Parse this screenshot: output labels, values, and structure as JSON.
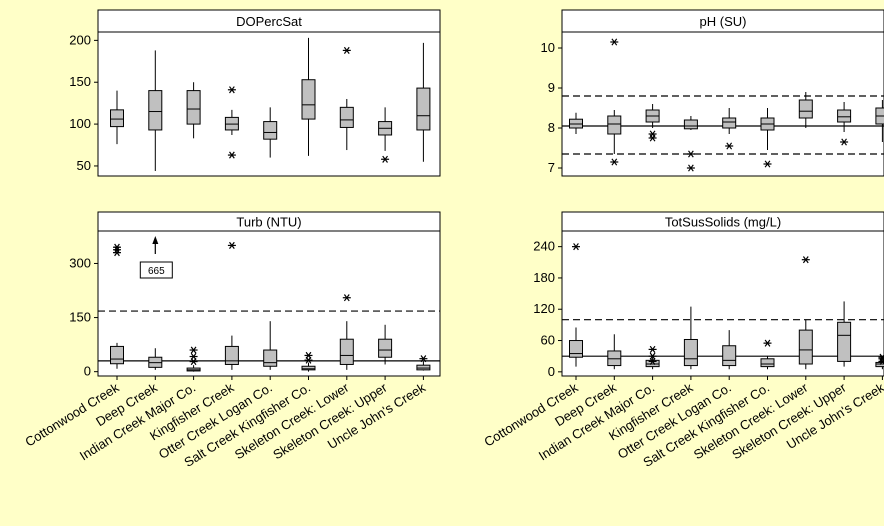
{
  "figure": {
    "background": "#FFFFC8",
    "box_fill": "#C0C0C0",
    "panel_fill": "#FFFFFF"
  },
  "chart_data": [
    {
      "type": "box",
      "title": "DOPercSat",
      "ylim": [
        38,
        210
      ],
      "yticks": [
        50,
        100,
        150,
        200
      ],
      "categories": [
        "Cottonwood Creek",
        "Deep Creek",
        "Indian Creek Major Co.",
        "Kingfisher Creek",
        "Otter Creek Logan Co.",
        "Salt Creek Kingfisher Co.",
        "Skeleton Creek: Lower",
        "Skeleton Creek: Upper",
        "Uncle John's Creek"
      ],
      "boxes": [
        {
          "low": 76,
          "q1": 97,
          "median": 106,
          "q3": 117,
          "high": 140,
          "outliers": []
        },
        {
          "low": 44,
          "q1": 93,
          "median": 115,
          "q3": 140,
          "high": 188,
          "outliers": []
        },
        {
          "low": 83,
          "q1": 100,
          "median": 118,
          "q3": 140,
          "high": 150,
          "outliers": []
        },
        {
          "low": 87,
          "q1": 93,
          "median": 100,
          "q3": 108,
          "high": 117,
          "outliers": [
            141,
            63
          ]
        },
        {
          "low": 60,
          "q1": 82,
          "median": 90,
          "q3": 103,
          "high": 120,
          "outliers": []
        },
        {
          "low": 62,
          "q1": 106,
          "median": 123,
          "q3": 153,
          "high": 203,
          "outliers": []
        },
        {
          "low": 69,
          "q1": 96,
          "median": 105,
          "q3": 120,
          "high": 130,
          "outliers": [
            188
          ]
        },
        {
          "low": 68,
          "q1": 87,
          "median": 95,
          "q3": 103,
          "high": 120,
          "outliers": [
            58
          ]
        },
        {
          "low": 55,
          "q1": 93,
          "median": 110,
          "q3": 143,
          "high": 197,
          "outliers": []
        }
      ],
      "hlines": []
    },
    {
      "type": "box",
      "title": "pH (SU)",
      "ylim": [
        6.8,
        10.4
      ],
      "yticks": [
        7,
        8,
        9,
        10
      ],
      "categories": [
        "Cottonwood Creek",
        "Deep Creek",
        "Indian Creek Major Co.",
        "Kingfisher Creek",
        "Otter Creek Logan Co.",
        "Salt Creek Kingfisher Co.",
        "Skeleton Creek: Lower",
        "Skeleton Creek: Upper",
        "Uncle John's Creek"
      ],
      "boxes": [
        {
          "low": 7.85,
          "q1": 8.0,
          "median": 8.1,
          "q3": 8.22,
          "high": 8.38,
          "outliers": []
        },
        {
          "low": 7.35,
          "q1": 7.85,
          "median": 8.1,
          "q3": 8.3,
          "high": 8.45,
          "outliers": [
            10.15,
            7.15
          ]
        },
        {
          "low": 8.0,
          "q1": 8.15,
          "median": 8.3,
          "q3": 8.45,
          "high": 8.6,
          "outliers": [
            7.85,
            7.75
          ]
        },
        {
          "low": 7.95,
          "q1": 7.98,
          "median": 8.05,
          "q3": 8.2,
          "high": 8.3,
          "outliers": [
            7.35,
            7.0
          ]
        },
        {
          "low": 7.85,
          "q1": 8.0,
          "median": 8.15,
          "q3": 8.25,
          "high": 8.5,
          "outliers": [
            7.55
          ]
        },
        {
          "low": 7.45,
          "q1": 7.95,
          "median": 8.1,
          "q3": 8.25,
          "high": 8.5,
          "outliers": [
            7.1
          ]
        },
        {
          "low": 8.0,
          "q1": 8.25,
          "median": 8.42,
          "q3": 8.7,
          "high": 8.9,
          "outliers": []
        },
        {
          "low": 7.9,
          "q1": 8.15,
          "median": 8.28,
          "q3": 8.45,
          "high": 8.65,
          "outliers": [
            7.65
          ]
        },
        {
          "low": 7.65,
          "q1": 8.1,
          "median": 8.3,
          "q3": 8.5,
          "high": 8.7,
          "outliers": []
        }
      ],
      "hlines": [
        {
          "y": 8.05,
          "style": "solid"
        },
        {
          "y": 8.8,
          "style": "dashed"
        },
        {
          "y": 7.35,
          "style": "dashed"
        }
      ]
    },
    {
      "type": "box",
      "title": "Turb (NTU)",
      "ylim": [
        -12,
        390
      ],
      "yticks": [
        0,
        150,
        300
      ],
      "categories": [
        "Cottonwood Creek",
        "Deep Creek",
        "Indian Creek Major Co.",
        "Kingfisher Creek",
        "Otter Creek Logan Co.",
        "Salt Creek Kingfisher Co.",
        "Skeleton Creek: Lower",
        "Skeleton Creek: Upper",
        "Uncle John's Creek"
      ],
      "boxes": [
        {
          "low": 8,
          "q1": 22,
          "median": 35,
          "q3": 70,
          "high": 80,
          "outliers": [
            345,
            338,
            330
          ]
        },
        {
          "low": 5,
          "q1": 12,
          "median": 25,
          "q3": 40,
          "high": 65,
          "outliers": []
        },
        {
          "low": 0,
          "q1": 2,
          "median": 5,
          "q3": 10,
          "high": 18,
          "outliers": [
            60,
            42,
            28
          ]
        },
        {
          "low": 5,
          "q1": 20,
          "median": 30,
          "q3": 70,
          "high": 100,
          "outliers": [
            350
          ]
        },
        {
          "low": 5,
          "q1": 15,
          "median": 25,
          "q3": 60,
          "high": 140,
          "outliers": []
        },
        {
          "low": 0,
          "q1": 5,
          "median": 8,
          "q3": 15,
          "high": 25,
          "outliers": [
            45,
            32
          ]
        },
        {
          "low": 5,
          "q1": 20,
          "median": 45,
          "q3": 90,
          "high": 140,
          "outliers": [
            205
          ]
        },
        {
          "low": 20,
          "q1": 40,
          "median": 60,
          "q3": 90,
          "high": 130,
          "outliers": []
        },
        {
          "low": 3,
          "q1": 5,
          "median": 10,
          "q3": 18,
          "high": 28,
          "outliers": [
            36
          ]
        }
      ],
      "hlines": [
        {
          "y": 30,
          "style": "solid"
        },
        {
          "y": 168,
          "style": "dashed"
        }
      ],
      "annotation": {
        "label": "665",
        "category_index": 1
      }
    },
    {
      "type": "box",
      "title": "TotSusSolids (mg/L)",
      "ylim": [
        -8,
        270
      ],
      "yticks": [
        0,
        60,
        120,
        180,
        240
      ],
      "categories": [
        "Cottonwood Creek",
        "Deep Creek",
        "Indian Creek Major Co.",
        "Kingfisher Creek",
        "Otter Creek Logan Co.",
        "Salt Creek Kingfisher Co.",
        "Skeleton Creek: Lower",
        "Skeleton Creek: Upper",
        "Uncle John's Creek"
      ],
      "boxes": [
        {
          "low": 10,
          "q1": 28,
          "median": 35,
          "q3": 60,
          "high": 85,
          "outliers": [
            240
          ]
        },
        {
          "low": 5,
          "q1": 12,
          "median": 25,
          "q3": 40,
          "high": 72,
          "outliers": []
        },
        {
          "low": 5,
          "q1": 10,
          "median": 15,
          "q3": 22,
          "high": 28,
          "outliers": [
            43,
            30,
            20
          ]
        },
        {
          "low": 5,
          "q1": 12,
          "median": 25,
          "q3": 62,
          "high": 125,
          "outliers": []
        },
        {
          "low": 5,
          "q1": 12,
          "median": 22,
          "q3": 50,
          "high": 80,
          "outliers": []
        },
        {
          "low": 5,
          "q1": 10,
          "median": 15,
          "q3": 25,
          "high": 30,
          "outliers": [
            55
          ]
        },
        {
          "low": 5,
          "q1": 15,
          "median": 42,
          "q3": 80,
          "high": 100,
          "outliers": [
            215
          ]
        },
        {
          "low": 10,
          "q1": 20,
          "median": 70,
          "q3": 95,
          "high": 135,
          "outliers": []
        },
        {
          "low": 5,
          "q1": 10,
          "median": 15,
          "q3": 18,
          "high": 20,
          "outliers": [
            28,
            25,
            20
          ]
        }
      ],
      "hlines": [
        {
          "y": 30,
          "style": "solid"
        },
        {
          "y": 100,
          "style": "dashed"
        }
      ]
    }
  ]
}
